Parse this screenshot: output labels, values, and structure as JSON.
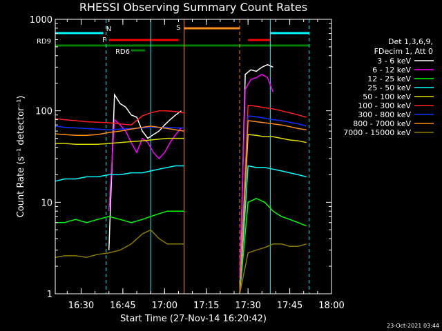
{
  "chart_data": {
    "type": "line",
    "title": "RHESSI Observing Summary Count Rates",
    "xlabel": "Start Time (27-Nov-14 16:20:42)",
    "ylabel": "Count Rate (s⁻¹ detector⁻¹)",
    "yscale": "log",
    "ylim": [
      1,
      1000
    ],
    "xlim": [
      "16:20:42",
      "18:00:00"
    ],
    "x_tick_labels": [
      "16:30",
      "16:45",
      "17:00",
      "17:15",
      "17:30",
      "17:45",
      "18:00"
    ],
    "y_tick_labels": [
      "1",
      "10",
      "100",
      "1000"
    ],
    "grid": false,
    "legend_position": "right",
    "legend_header": [
      "Det 1,3,6,9,",
      "FDecim 1, Att 0"
    ],
    "footer_date": "23-Oct-2021 03:44",
    "gaps": [
      [
        "17:07",
        "17:27"
      ]
    ],
    "series": [
      {
        "name": "3 - 6 keV",
        "color": "#ffffff",
        "x": [
          "16:40",
          "16:42",
          "16:44",
          "16:46",
          "16:48",
          "16:50",
          "16:52",
          "16:54",
          "16:56",
          "16:58",
          "17:00",
          "17:02",
          "17:04",
          "17:06",
          "17:27",
          "17:29",
          "17:31",
          "17:33",
          "17:35",
          "17:37",
          "17:39"
        ],
        "y": [
          3,
          150,
          120,
          110,
          90,
          85,
          60,
          50,
          55,
          60,
          70,
          80,
          90,
          100,
          1,
          250,
          280,
          270,
          300,
          320,
          300
        ]
      },
      {
        "name": "6 - 12 keV",
        "color": "#ff00ff",
        "x": [
          "16:40",
          "16:42",
          "16:44",
          "16:46",
          "16:48",
          "16:50",
          "16:52",
          "16:54",
          "16:56",
          "16:58",
          "17:00",
          "17:02",
          "17:04",
          "17:06",
          "17:27",
          "17:29",
          "17:31",
          "17:33",
          "17:35",
          "17:37",
          "17:39"
        ],
        "y": [
          8,
          80,
          70,
          60,
          45,
          35,
          50,
          45,
          35,
          30,
          35,
          45,
          55,
          65,
          1.5,
          170,
          220,
          230,
          250,
          230,
          160
        ]
      },
      {
        "name": "12 - 25 keV",
        "color": "#00ff00",
        "x": [
          "16:20:42",
          "16:24",
          "16:28",
          "16:32",
          "16:36",
          "16:40",
          "16:44",
          "16:48",
          "16:52",
          "16:55",
          "16:58",
          "17:01",
          "17:04",
          "17:07",
          "17:27",
          "17:30",
          "17:33",
          "17:36",
          "17:39",
          "17:42",
          "17:45",
          "17:48",
          "17:51"
        ],
        "y": [
          6,
          6,
          6.5,
          6,
          6.5,
          7,
          6.5,
          6,
          6.5,
          7,
          7.5,
          8,
          8,
          8,
          1,
          10,
          11,
          10,
          8,
          7,
          6.5,
          6,
          5.5
        ]
      },
      {
        "name": "25 - 50 keV",
        "color": "#00ffff",
        "x": [
          "16:20:42",
          "16:24",
          "16:28",
          "16:32",
          "16:36",
          "16:40",
          "16:44",
          "16:48",
          "16:52",
          "16:55",
          "16:58",
          "17:01",
          "17:04",
          "17:07",
          "17:27",
          "17:30",
          "17:33",
          "17:36",
          "17:39",
          "17:42",
          "17:45",
          "17:48",
          "17:51"
        ],
        "y": [
          17,
          18,
          18,
          19,
          19,
          20,
          20,
          21,
          21,
          22,
          23,
          24,
          25,
          25,
          1,
          25,
          24,
          24,
          23,
          22,
          21,
          20,
          19
        ]
      },
      {
        "name": "50 - 100 keV",
        "color": "#dddd00",
        "x": [
          "16:20:42",
          "16:24",
          "16:28",
          "16:32",
          "16:36",
          "16:40",
          "16:44",
          "16:48",
          "16:52",
          "16:55",
          "16:58",
          "17:01",
          "17:04",
          "17:07",
          "17:27",
          "17:30",
          "17:33",
          "17:36",
          "17:39",
          "17:42",
          "17:45",
          "17:48",
          "17:51"
        ],
        "y": [
          44,
          44,
          43,
          43,
          43,
          44,
          45,
          46,
          47,
          48,
          49,
          50,
          50,
          50,
          1,
          55,
          54,
          52,
          52,
          50,
          48,
          47,
          45
        ]
      },
      {
        "name": "100 - 300 keV",
        "color": "#ff2020",
        "x": [
          "16:20:42",
          "16:24",
          "16:28",
          "16:32",
          "16:36",
          "16:40",
          "16:44",
          "16:48",
          "16:52",
          "16:55",
          "16:58",
          "17:01",
          "17:04",
          "17:07",
          "17:27",
          "17:30",
          "17:33",
          "17:36",
          "17:39",
          "17:42",
          "17:45",
          "17:48",
          "17:51"
        ],
        "y": [
          82,
          80,
          78,
          76,
          75,
          74,
          72,
          70,
          88,
          95,
          100,
          100,
          98,
          95,
          1,
          115,
          112,
          108,
          105,
          100,
          95,
          90,
          85
        ]
      },
      {
        "name": "300 - 800 keV",
        "color": "#1030ff",
        "x": [
          "16:20:42",
          "16:24",
          "16:28",
          "16:32",
          "16:36",
          "16:40",
          "16:44",
          "16:48",
          "16:52",
          "16:55",
          "16:58",
          "17:01",
          "17:04",
          "17:07",
          "17:27",
          "17:30",
          "17:33",
          "17:36",
          "17:39",
          "17:42",
          "17:45",
          "17:48",
          "17:51"
        ],
        "y": [
          68,
          66,
          65,
          64,
          63,
          62,
          63,
          64,
          65,
          66,
          66,
          66,
          65,
          65,
          1,
          88,
          86,
          83,
          80,
          78,
          75,
          72,
          68
        ]
      },
      {
        "name": "800 - 7000 keV",
        "color": "#ff8c1a",
        "x": [
          "16:20:42",
          "16:24",
          "16:28",
          "16:32",
          "16:36",
          "16:40",
          "16:44",
          "16:48",
          "16:52",
          "16:55",
          "16:58",
          "17:01",
          "17:04",
          "17:07",
          "17:27",
          "17:30",
          "17:33",
          "17:36",
          "17:39",
          "17:42",
          "17:45",
          "17:48",
          "17:51"
        ],
        "y": [
          56,
          55,
          54,
          54,
          55,
          58,
          60,
          63,
          66,
          68,
          66,
          64,
          62,
          60,
          1,
          78,
          76,
          74,
          72,
          70,
          67,
          64,
          62
        ]
      },
      {
        "name": "7000 - 15000 keV",
        "color": "#8c7a00",
        "x": [
          "16:20:42",
          "16:24",
          "16:28",
          "16:32",
          "16:36",
          "16:40",
          "16:44",
          "16:48",
          "16:52",
          "16:55",
          "16:58",
          "17:01",
          "17:04",
          "17:07",
          "17:27",
          "17:30",
          "17:33",
          "17:36",
          "17:39",
          "17:42",
          "17:45",
          "17:48",
          "17:51"
        ],
        "y": [
          2.5,
          2.6,
          2.6,
          2.5,
          2.7,
          2.8,
          3.0,
          3.5,
          4.5,
          5.0,
          4.0,
          3.5,
          3.5,
          3.5,
          1,
          2.8,
          3.0,
          3.2,
          3.5,
          3.5,
          3.3,
          3.3,
          3.5
        ]
      }
    ],
    "flag_bars": [
      {
        "label": "N",
        "color": "#00ffff",
        "segments": [
          [
            "16:20:42",
            "16:38"
          ],
          [
            "17:38",
            "17:52"
          ]
        ]
      },
      {
        "label": "F",
        "color": "#ff0000",
        "segments": [
          [
            "16:40",
            "17:05"
          ],
          [
            "17:30",
            "17:38"
          ]
        ]
      },
      {
        "label": "RD9",
        "color": "#008000",
        "segments": [
          [
            "16:20:42",
            "17:52"
          ]
        ]
      },
      {
        "label": "RD6",
        "color": "#008000",
        "segments": [
          [
            "16:48",
            "16:53"
          ]
        ]
      },
      {
        "label": "S",
        "color": "#ff8c1a",
        "segments": [
          [
            "17:07",
            "17:27"
          ]
        ]
      }
    ],
    "vertical_markers": [
      {
        "x": "16:39",
        "color": "#00ffff",
        "style": "dashed"
      },
      {
        "x": "16:55",
        "color": "#00ffff",
        "style": "solid"
      },
      {
        "x": "17:07",
        "color": "#ff8c1a",
        "style": "solid"
      },
      {
        "x": "17:27",
        "color": "#ff8c1a",
        "style": "dashed"
      },
      {
        "x": "17:38",
        "color": "#00ffff",
        "style": "solid"
      },
      {
        "x": "17:52",
        "color": "#00ffff",
        "style": "dashed"
      }
    ]
  }
}
